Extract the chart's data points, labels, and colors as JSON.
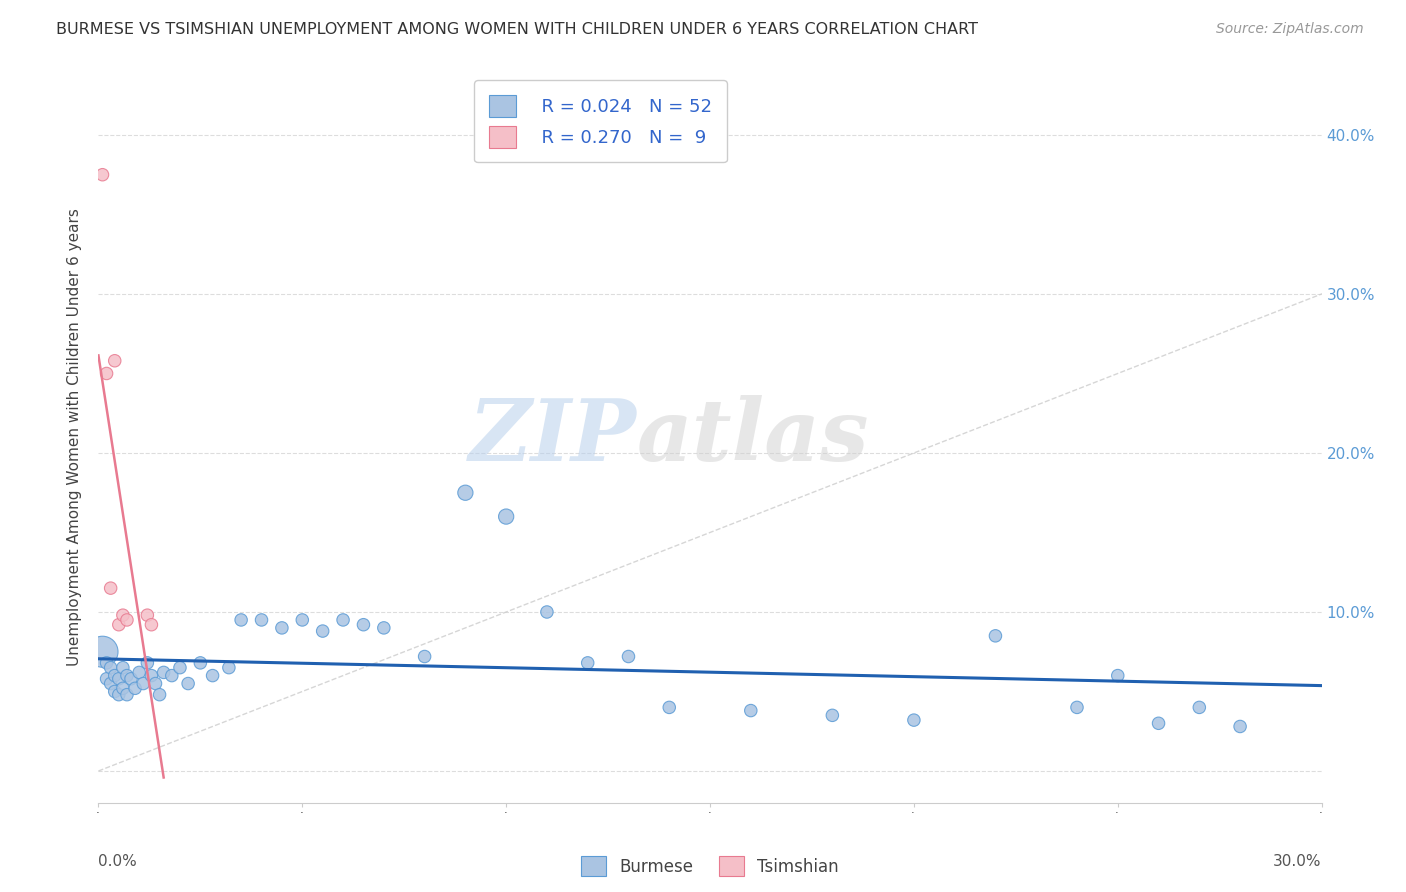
{
  "title": "BURMESE VS TSIMSHIAN UNEMPLOYMENT AMONG WOMEN WITH CHILDREN UNDER 6 YEARS CORRELATION CHART",
  "source": "Source: ZipAtlas.com",
  "ylabel": "Unemployment Among Women with Children Under 6 years",
  "xlim": [
    0.0,
    0.3
  ],
  "ylim": [
    -0.02,
    0.44
  ],
  "yticks": [
    0.0,
    0.1,
    0.2,
    0.3,
    0.4
  ],
  "ytick_labels_left": [
    "",
    "",
    "",
    "",
    ""
  ],
  "ytick_labels_right": [
    "",
    "10.0%",
    "20.0%",
    "30.0%",
    "40.0%"
  ],
  "burmese_color": "#aac4e2",
  "burmese_edge_color": "#5b9bd5",
  "tsimshian_color": "#f5bfc8",
  "tsimshian_edge_color": "#e87a90",
  "trend_blue_color": "#2060b0",
  "trend_pink_color": "#e87a90",
  "diagonal_color": "#cccccc",
  "watermark_zip": "ZIP",
  "watermark_atlas": "atlas",
  "legend_r_burmese": "R = 0.024",
  "legend_n_burmese": "N = 52",
  "legend_r_tsimshian": "R = 0.270",
  "legend_n_tsimshian": "N =  9",
  "burmese_x": [
    0.001,
    0.002,
    0.002,
    0.003,
    0.003,
    0.004,
    0.004,
    0.005,
    0.005,
    0.006,
    0.006,
    0.007,
    0.007,
    0.008,
    0.009,
    0.01,
    0.011,
    0.012,
    0.013,
    0.014,
    0.015,
    0.016,
    0.018,
    0.02,
    0.022,
    0.025,
    0.028,
    0.032,
    0.035,
    0.04,
    0.045,
    0.05,
    0.055,
    0.06,
    0.065,
    0.07,
    0.08,
    0.09,
    0.1,
    0.11,
    0.12,
    0.13,
    0.14,
    0.16,
    0.18,
    0.2,
    0.22,
    0.24,
    0.25,
    0.26,
    0.27,
    0.28
  ],
  "burmese_y": [
    0.075,
    0.068,
    0.058,
    0.065,
    0.055,
    0.06,
    0.05,
    0.058,
    0.048,
    0.065,
    0.052,
    0.06,
    0.048,
    0.058,
    0.052,
    0.062,
    0.055,
    0.068,
    0.06,
    0.055,
    0.048,
    0.062,
    0.06,
    0.065,
    0.055,
    0.068,
    0.06,
    0.065,
    0.095,
    0.095,
    0.09,
    0.095,
    0.088,
    0.095,
    0.092,
    0.09,
    0.072,
    0.175,
    0.16,
    0.1,
    0.068,
    0.072,
    0.04,
    0.038,
    0.035,
    0.032,
    0.085,
    0.04,
    0.06,
    0.03,
    0.04,
    0.028
  ],
  "burmese_size": [
    500,
    80,
    80,
    80,
    80,
    80,
    80,
    80,
    80,
    80,
    80,
    80,
    80,
    80,
    80,
    80,
    80,
    80,
    80,
    80,
    80,
    80,
    80,
    80,
    80,
    80,
    80,
    80,
    80,
    80,
    80,
    80,
    80,
    80,
    80,
    80,
    80,
    120,
    120,
    80,
    80,
    80,
    80,
    80,
    80,
    80,
    80,
    80,
    80,
    80,
    80,
    80
  ],
  "tsimshian_x": [
    0.001,
    0.002,
    0.003,
    0.004,
    0.005,
    0.006,
    0.007,
    0.012,
    0.013
  ],
  "tsimshian_y": [
    0.375,
    0.25,
    0.115,
    0.258,
    0.092,
    0.098,
    0.095,
    0.098,
    0.092
  ],
  "tsimshian_size": [
    80,
    80,
    80,
    80,
    80,
    80,
    80,
    80,
    80
  ],
  "bg_color": "#ffffff",
  "grid_color": "#dddddd"
}
